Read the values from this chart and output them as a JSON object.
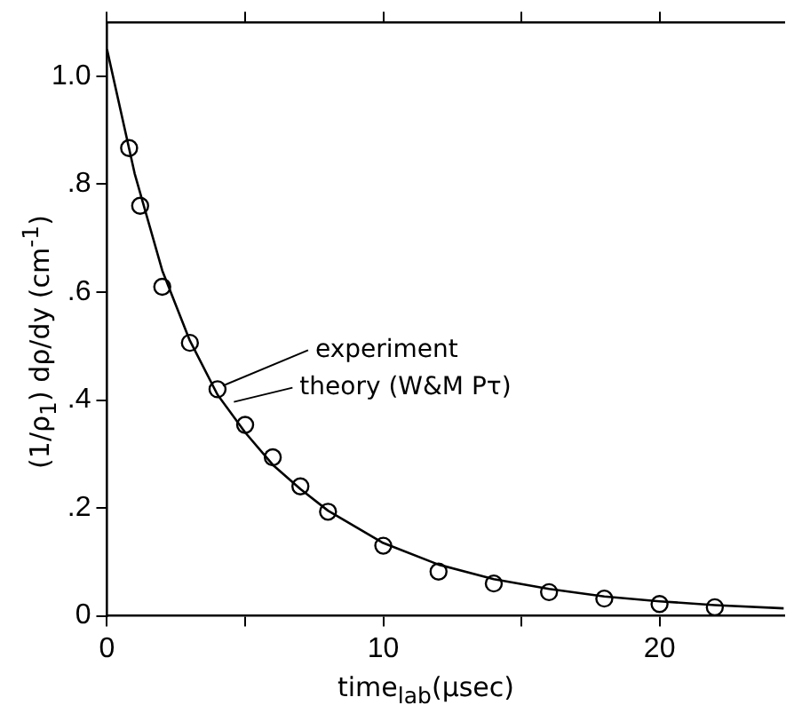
{
  "chart_data": {
    "type": "scatter",
    "xlabel": "time$_{lab}$(µsec)",
    "ylabel": "(1/ρ$_{1}$) dρ/dy  (cm$^{-1}$)",
    "xlim": [
      0,
      24.5
    ],
    "xticks": [
      0,
      {
        "value": 5,
        "label": null
      },
      10,
      {
        "value": 15,
        "label": null
      },
      20
    ],
    "ylim": [
      0,
      1.1
    ],
    "yticks": [
      {
        "value": 0,
        "label": "0"
      },
      {
        "value": 0.2,
        "label": ".2"
      },
      {
        "value": 0.4,
        "label": ".4"
      },
      {
        "value": 0.6,
        "label": ".6"
      },
      {
        "value": 0.8,
        "label": ".8"
      },
      {
        "value": 1.0,
        "label": "1.0"
      }
    ],
    "grid": false,
    "legend": false,
    "annotations": [
      {
        "text": "experiment",
        "x": 4,
        "y": 0.42
      },
      {
        "text": "theory (W&M Pτ)",
        "x": 4.4,
        "y": 0.39
      }
    ],
    "series": [
      {
        "type": "scatter",
        "marker": "circle",
        "color": "#000000",
        "x": [
          0.8,
          1.2,
          2,
          3,
          4,
          5,
          6,
          7,
          8,
          10,
          12,
          14,
          16,
          18,
          20,
          22
        ],
        "values": [
          0.867,
          0.76,
          0.61,
          0.506,
          0.42,
          0.354,
          0.294,
          0.24,
          0.193,
          0.13,
          0.082,
          0.06,
          0.044,
          0.032,
          0.022,
          0.016
        ]
      },
      {
        "type": "line",
        "marker": "none",
        "line_style": "solid",
        "color": "#000000",
        "x": [
          0,
          1,
          2,
          3,
          4,
          5,
          6,
          7,
          8,
          10,
          12,
          14,
          16,
          18,
          20,
          22,
          24.5
        ],
        "values": [
          1.05,
          0.82,
          0.64,
          0.51,
          0.41,
          0.34,
          0.28,
          0.235,
          0.195,
          0.135,
          0.095,
          0.068,
          0.05,
          0.036,
          0.027,
          0.02,
          0.014
        ]
      }
    ]
  }
}
